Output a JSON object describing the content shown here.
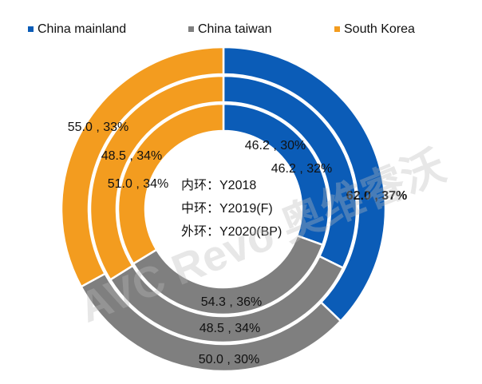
{
  "chart_data": {
    "type": "donut",
    "categories": [
      "China mainland",
      "China taiwan",
      "South Korea"
    ],
    "colors": [
      "#0b5cb7",
      "#7f7f7f",
      "#f39c1f"
    ],
    "rings": [
      {
        "name": "内环：Y2018",
        "values": [
          46.2,
          54.3,
          51.0
        ],
        "value_labels": [
          "46.2 , 30%",
          "54.3 , 36%",
          "51.0 , 34%"
        ]
      },
      {
        "name": "中环：Y2019(F)",
        "values": [
          46.2,
          48.5,
          48.5
        ],
        "value_labels": [
          "46.2 , 32%",
          "48.5 , 34%",
          "48.5 , 34%"
        ]
      },
      {
        "name": "外环：Y2020(BP)",
        "values": [
          62.0,
          50.0,
          55.0
        ],
        "value_labels": [
          "62.0 , 37%",
          "50.0 , 30%",
          "55.0 , 33%"
        ]
      }
    ],
    "watermark": "AVC Revo 奥维睿沃"
  }
}
